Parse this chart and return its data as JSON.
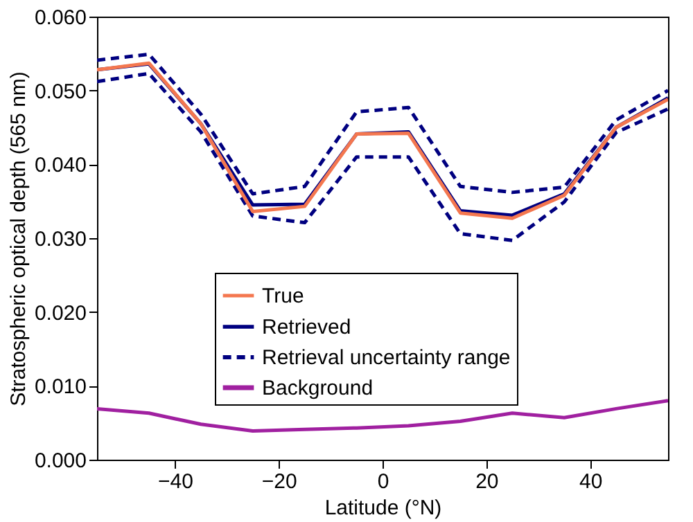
{
  "chart_data": {
    "type": "line",
    "xlabel": "Latitude (°N)",
    "ylabel": "Stratospheric optical depth (565 nm)",
    "x": [
      -55,
      -45,
      -35,
      -25,
      -15,
      -5,
      5,
      15,
      25,
      35,
      45,
      55
    ],
    "series": [
      {
        "name": "True",
        "color": "#f4774f",
        "line_style": "solid",
        "values": [
          0.0528,
          0.0537,
          0.0455,
          0.0336,
          0.0343,
          0.0441,
          0.0442,
          0.0334,
          0.0327,
          0.0358,
          0.045,
          0.0488
        ]
      },
      {
        "name": "Retrieved",
        "color": "#000080",
        "line_style": "solid",
        "values": [
          0.0528,
          0.0536,
          0.0455,
          0.0345,
          0.0346,
          0.0441,
          0.0444,
          0.0337,
          0.0331,
          0.036,
          0.045,
          0.049
        ]
      },
      {
        "name": "Retrieval uncertainty range",
        "color": "#000080",
        "line_style": "dashed",
        "values": [
          0.0541,
          0.0549,
          0.0468,
          0.036,
          0.037,
          0.0471,
          0.0477,
          0.037,
          0.0362,
          0.0369,
          0.046,
          0.05
        ]
      },
      {
        "color": "#000080",
        "line_style": "dashed",
        "values": [
          0.0512,
          0.0523,
          0.0444,
          0.033,
          0.0321,
          0.041,
          0.041,
          0.0306,
          0.0297,
          0.0349,
          0.0443,
          0.0475
        ]
      },
      {
        "name": "Background",
        "color": "#a020a0",
        "line_style": "solid",
        "values": [
          0.0069,
          0.0063,
          0.0048,
          0.0039,
          0.0041,
          0.0043,
          0.0046,
          0.0052,
          0.0063,
          0.0057,
          0.0069,
          0.008
        ]
      }
    ],
    "xlim": [
      -55,
      55
    ],
    "xticks": [
      -40,
      -20,
      0,
      20,
      40
    ],
    "ylim": [
      0,
      0.06
    ],
    "yticks": [
      {
        "value": 0,
        "label": "0.000"
      },
      {
        "value": 0.01,
        "label": "0.010"
      },
      {
        "value": 0.02,
        "label": "0.020"
      },
      {
        "value": 0.03,
        "label": "0.030"
      },
      {
        "value": 0.04,
        "label": "0.040"
      },
      {
        "value": 0.05,
        "label": "0.050"
      },
      {
        "value": 0.06,
        "label": "0.060"
      }
    ],
    "grid": false,
    "legend": "bottom",
    "marker": "none"
  }
}
